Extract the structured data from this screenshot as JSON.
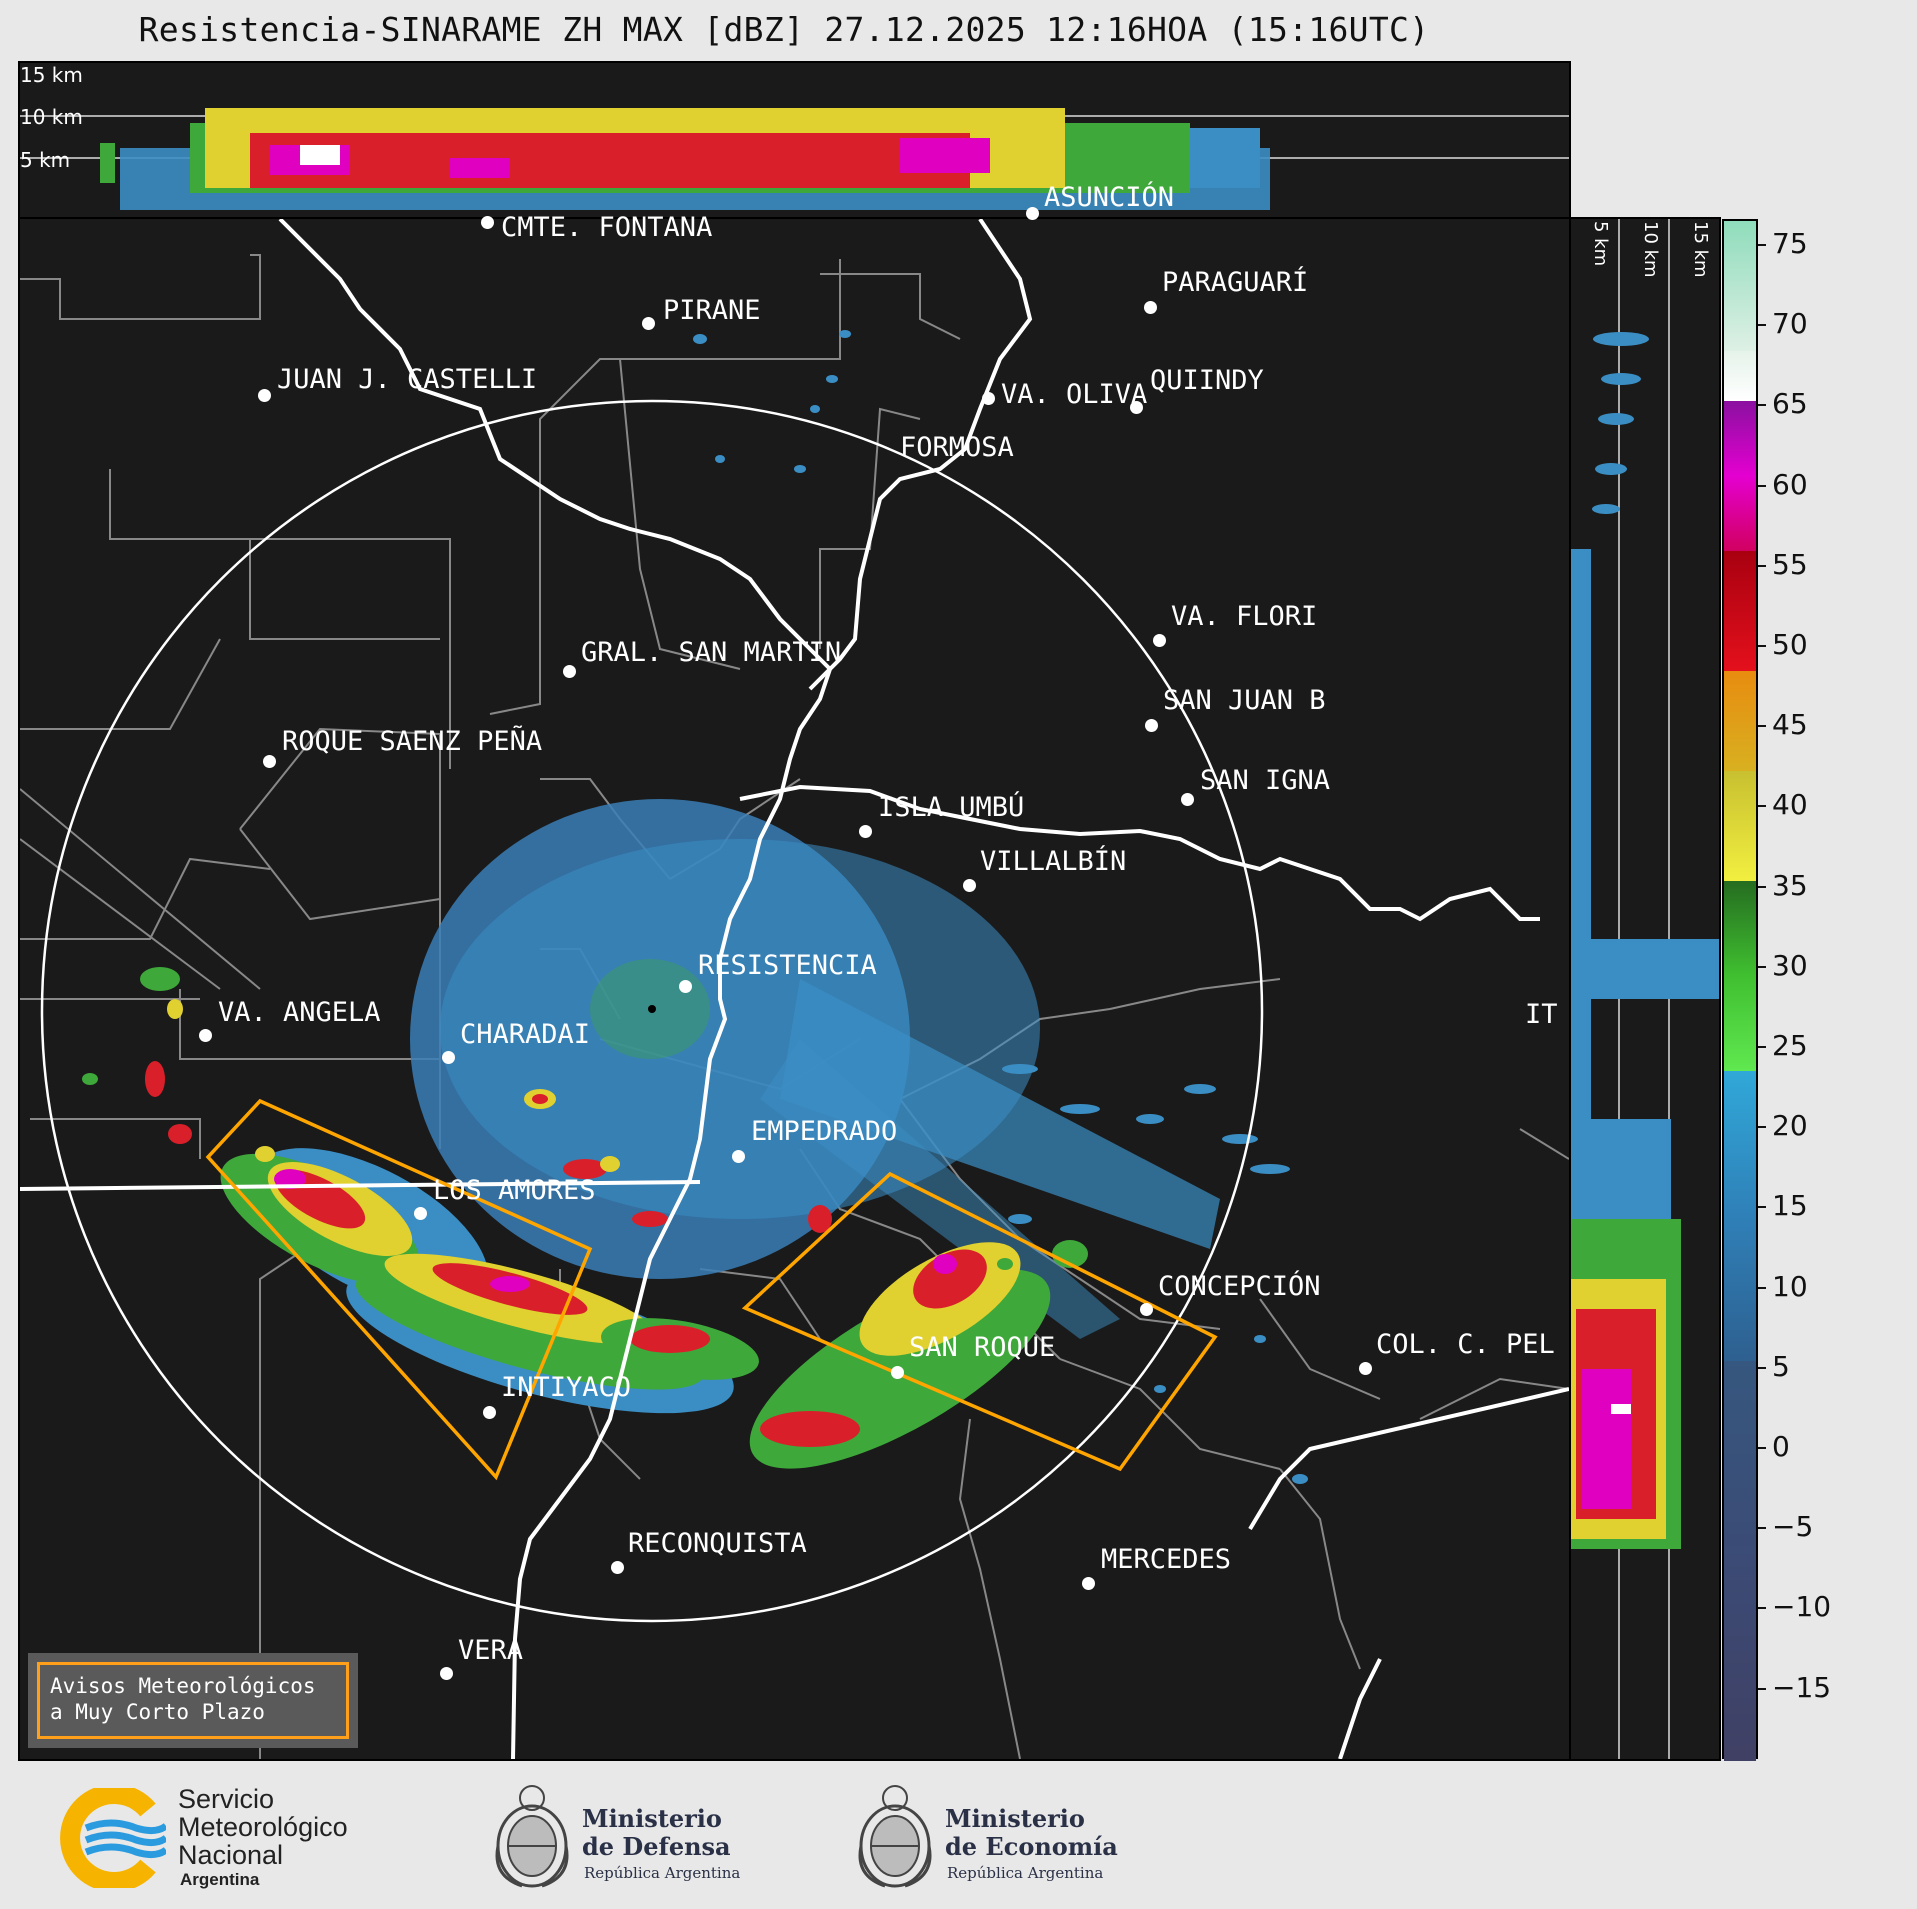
{
  "title": "Resistencia-SINARAME ZH MAX [dBZ] 27.12.2025 12:16HOA (15:16UTC)",
  "top_panel": {
    "height_labels": [
      "15 km",
      "10 km",
      "5 km"
    ]
  },
  "right_panel": {
    "height_labels": [
      "5 km",
      "10 km",
      "15 km"
    ]
  },
  "colorbar": {
    "unit": "dBZ",
    "ticks": [
      "75",
      "70",
      "65",
      "60",
      "55",
      "50",
      "45",
      "40",
      "35",
      "30",
      "25",
      "20",
      "15",
      "10",
      "5",
      "0",
      "−5",
      "−10",
      "−15"
    ],
    "range": [
      -20,
      77
    ]
  },
  "map": {
    "cities": [
      {
        "name": "CMTE. FONTANA"
      },
      {
        "name": "ASUNCIÓN"
      },
      {
        "name": "PIRANE"
      },
      {
        "name": "PARAGUARÍ"
      },
      {
        "name": "JUAN J. CASTELLI"
      },
      {
        "name": "VA. OLIVA"
      },
      {
        "name": "QUIINDY"
      },
      {
        "name": "FORMOSA"
      },
      {
        "name": "VA. FLORI"
      },
      {
        "name": "GRAL. SAN MARTIN"
      },
      {
        "name": "SAN JUAN B"
      },
      {
        "name": "ROQUE SAENZ PEÑA"
      },
      {
        "name": "SAN IGNA"
      },
      {
        "name": "ISLA UMBÚ"
      },
      {
        "name": "VILLALBÍN"
      },
      {
        "name": "RESISTENCIA"
      },
      {
        "name": "VA. ANGELA"
      },
      {
        "name": "CHARADAI"
      },
      {
        "name": "IT"
      },
      {
        "name": "EMPEDRADO"
      },
      {
        "name": "LOS AMORES"
      },
      {
        "name": "CONCEPCIÓN"
      },
      {
        "name": "COL. C. PEL"
      },
      {
        "name": "SAN ROQUE"
      },
      {
        "name": "INTIYACO"
      },
      {
        "name": "RECONQUISTA"
      },
      {
        "name": "MERCEDES"
      },
      {
        "name": "VERA"
      }
    ]
  },
  "avisos": {
    "line1": "Avisos Meteorológicos",
    "line2": "a Muy Corto Plazo"
  },
  "footer": {
    "smn": {
      "line1": "Servicio",
      "line2": "Meteorológico",
      "line3": "Nacional",
      "line4": "Argentina"
    },
    "defensa": {
      "line1": "Ministerio",
      "line2": "de Defensa",
      "sub": "República Argentina"
    },
    "economia": {
      "line1": "Ministerio",
      "line2": "de Economía",
      "sub": "República Argentina"
    }
  },
  "colors": {
    "panel_bg": "#1a1a1a",
    "warning_polygon": "#ffa500",
    "range_ring": "#ffffff",
    "border": "#888888"
  }
}
